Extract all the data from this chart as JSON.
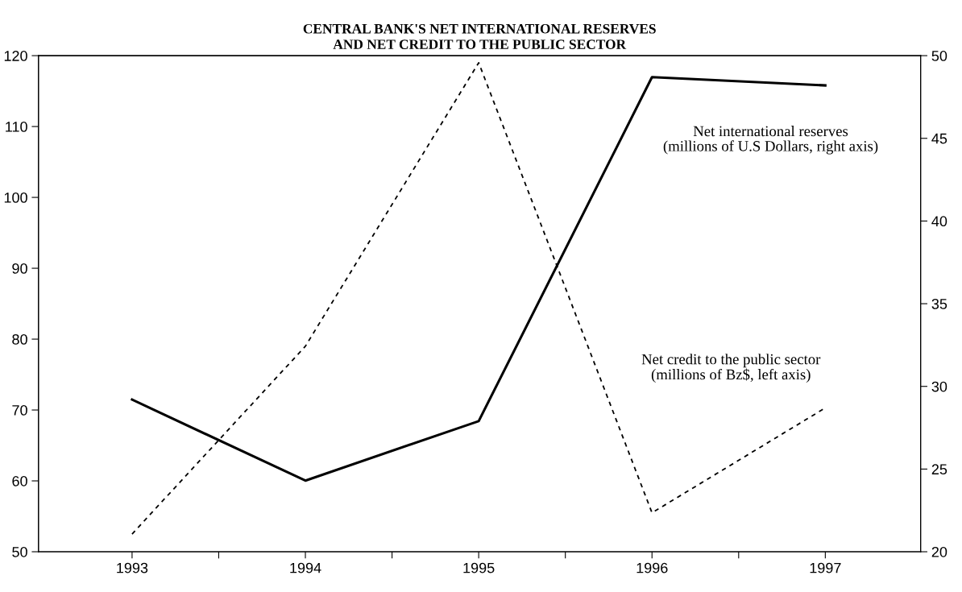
{
  "chart_data": {
    "type": "line",
    "title": "CENTRAL BANK'S NET INTERNATIONAL RESERVES\nAND NET CREDIT TO THE PUBLIC SECTOR",
    "x": [
      1993,
      1994,
      1995,
      1996,
      1997
    ],
    "xlim": [
      1992.46,
      1997.55
    ],
    "xticks": [
      1993,
      {
        "value": 1993.5,
        "label": null
      },
      1994,
      {
        "value": 1994.5,
        "label": null
      },
      1995,
      {
        "value": 1995.5,
        "label": null
      },
      1996,
      {
        "value": 1996.5,
        "label": null
      },
      1997
    ],
    "ylim": [
      50,
      120
    ],
    "yticks": [
      50,
      60,
      70,
      80,
      90,
      100,
      110,
      120
    ],
    "y2lim": [
      20,
      50
    ],
    "y2ticks": [
      20,
      25,
      30,
      35,
      40,
      45,
      50
    ],
    "series": [
      {
        "name": "Net international reserves\n(millions of U.S Dollars, right axis)",
        "color": "#000000",
        "axis": "y2",
        "line_style": "solid",
        "values": [
          29.2,
          24.3,
          27.9,
          48.7,
          48.2
        ]
      },
      {
        "name": "Net credit to the public sector\n(millions of Bz$, left axis)",
        "color": "#000000",
        "line_style": "dashed",
        "values": [
          52.5,
          79,
          119,
          55.5,
          70.3
        ]
      }
    ],
    "grid": false,
    "legend": false,
    "marker": "none"
  }
}
